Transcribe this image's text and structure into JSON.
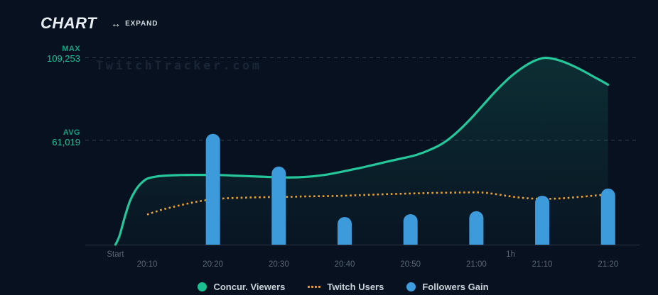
{
  "header": {
    "title": "CHART",
    "expand_label": "EXPAND",
    "expand_icon": "↔"
  },
  "watermark": "TwitchTracker.com",
  "colors": {
    "background": "#081120",
    "viewers_line": "#24c69a",
    "viewers_fill_top": "rgba(34,198,154,0.16)",
    "viewers_fill_bottom": "rgba(34,198,154,0.02)",
    "followers_bar": "#3d9bdc",
    "twitch_users_dots": "#f0a22e",
    "gridline": "rgba(150,162,175,0.30)",
    "axis_line": "#2c3743",
    "tick_text": "#5a6773",
    "max_label": "#0fa584",
    "max_value": "#1dc29a"
  },
  "chart_data": {
    "type": "mixed",
    "title": "CHART",
    "grid": "two horizontal dashed reference lines (MAX, AVG)",
    "legend_position": "bottom-center",
    "y_axis": {
      "max": {
        "label": "MAX",
        "value": "109,253",
        "value_num": 109253
      },
      "avg": {
        "label": "AVG",
        "value": "61,019",
        "value_num": 61019
      },
      "baseline_value": 0,
      "ticks_hidden": true
    },
    "x_axis": {
      "unit": "minutes after 20:00",
      "upper_ticks": [
        {
          "label": "Start",
          "minute": 5.2
        },
        {
          "label": "1h",
          "minute": 65.2
        }
      ],
      "ticks": [
        {
          "label": "20:10",
          "minute": 10
        },
        {
          "label": "20:20",
          "minute": 20
        },
        {
          "label": "20:30",
          "minute": 30
        },
        {
          "label": "20:40",
          "minute": 40
        },
        {
          "label": "20:50",
          "minute": 50
        },
        {
          "label": "21:00",
          "minute": 60
        },
        {
          "label": "21:10",
          "minute": 70
        },
        {
          "label": "21:20",
          "minute": 80
        }
      ]
    },
    "series": {
      "viewers": {
        "name": "Concur. Viewers",
        "type": "area-line",
        "color": "#24c69a",
        "points": [
          [
            5.2,
            0
          ],
          [
            5.8,
            5000
          ],
          [
            6.6,
            16000
          ],
          [
            7.4,
            25500
          ],
          [
            8.2,
            31500
          ],
          [
            9,
            35500
          ],
          [
            10,
            38500
          ],
          [
            11.5,
            39900
          ],
          [
            13,
            40400
          ],
          [
            15,
            40700
          ],
          [
            17,
            40800
          ],
          [
            19,
            40800
          ],
          [
            21,
            40700
          ],
          [
            23,
            40400
          ],
          [
            25,
            40100
          ],
          [
            27,
            39800
          ],
          [
            29,
            39500
          ],
          [
            31,
            39300
          ],
          [
            33,
            39400
          ],
          [
            35,
            39900
          ],
          [
            37,
            40800
          ],
          [
            39,
            42200
          ],
          [
            41,
            43800
          ],
          [
            43,
            45400
          ],
          [
            45,
            47200
          ],
          [
            47,
            49000
          ],
          [
            49,
            50700
          ],
          [
            51,
            52600
          ],
          [
            53,
            55500
          ],
          [
            55,
            59500
          ],
          [
            57,
            65500
          ],
          [
            59,
            73000
          ],
          [
            61,
            81500
          ],
          [
            63,
            90000
          ],
          [
            65,
            97500
          ],
          [
            67,
            103500
          ],
          [
            69,
            107800
          ],
          [
            70.5,
            109253
          ],
          [
            72,
            108400
          ],
          [
            73.5,
            106500
          ],
          [
            75,
            104000
          ],
          [
            76.5,
            101000
          ],
          [
            78,
            97800
          ],
          [
            79.2,
            95300
          ],
          [
            80,
            93500
          ]
        ]
      },
      "twitch_users": {
        "name": "Twitch Users",
        "type": "dotted-line",
        "color": "#f0a22e",
        "scale_note": "own axis not displayed; values approximated on viewers scale",
        "points": [
          [
            10,
            17600
          ],
          [
            11,
            18900
          ],
          [
            12.5,
            20700
          ],
          [
            14,
            22100
          ],
          [
            16,
            23900
          ],
          [
            18,
            25400
          ],
          [
            20,
            26600
          ],
          [
            22,
            27100
          ],
          [
            24,
            27400
          ],
          [
            26,
            27600
          ],
          [
            28,
            27800
          ],
          [
            30,
            27900
          ],
          [
            32,
            28000
          ],
          [
            34,
            28200
          ],
          [
            36,
            28300
          ],
          [
            38,
            28400
          ],
          [
            40,
            28600
          ],
          [
            42,
            28900
          ],
          [
            44,
            29200
          ],
          [
            46,
            29500
          ],
          [
            48,
            29700
          ],
          [
            50,
            29900
          ],
          [
            52,
            30100
          ],
          [
            54,
            30300
          ],
          [
            56,
            30400
          ],
          [
            58,
            30500
          ],
          [
            60,
            30600
          ],
          [
            61.5,
            30300
          ],
          [
            63,
            29500
          ],
          [
            64.5,
            28600
          ],
          [
            66,
            27800
          ],
          [
            67.5,
            27200
          ],
          [
            69,
            26900
          ],
          [
            70.5,
            26800
          ],
          [
            72,
            26900
          ],
          [
            73.5,
            27200
          ],
          [
            75,
            27700
          ],
          [
            76.5,
            28200
          ],
          [
            78,
            28700
          ],
          [
            79.5,
            29200
          ]
        ]
      },
      "followers_gain": {
        "name": "Followers Gain",
        "type": "bar",
        "color": "#3d9bdc",
        "scale_note": "own axis not displayed; heights given as fraction of plot height (baseline to MAX line)",
        "bars": [
          {
            "time": "20:20",
            "minute": 20,
            "height_frac": 0.593
          },
          {
            "time": "20:30",
            "minute": 30,
            "height_frac": 0.418
          },
          {
            "time": "20:40",
            "minute": 40,
            "height_frac": 0.148
          },
          {
            "time": "20:50",
            "minute": 50,
            "height_frac": 0.163
          },
          {
            "time": "21:00",
            "minute": 60,
            "height_frac": 0.179
          },
          {
            "time": "21:10",
            "minute": 70,
            "height_frac": 0.262
          },
          {
            "time": "21:20",
            "minute": 80,
            "height_frac": 0.3
          }
        ]
      }
    }
  },
  "legend": {
    "items": [
      {
        "label": "Concur. Viewers",
        "swatch": "dot",
        "color": "#1cbf92"
      },
      {
        "label": "Twitch Users",
        "swatch": "dotted",
        "color": "#f0a22e"
      },
      {
        "label": "Followers Gain",
        "swatch": "dot",
        "color": "#3d9edf"
      }
    ]
  }
}
